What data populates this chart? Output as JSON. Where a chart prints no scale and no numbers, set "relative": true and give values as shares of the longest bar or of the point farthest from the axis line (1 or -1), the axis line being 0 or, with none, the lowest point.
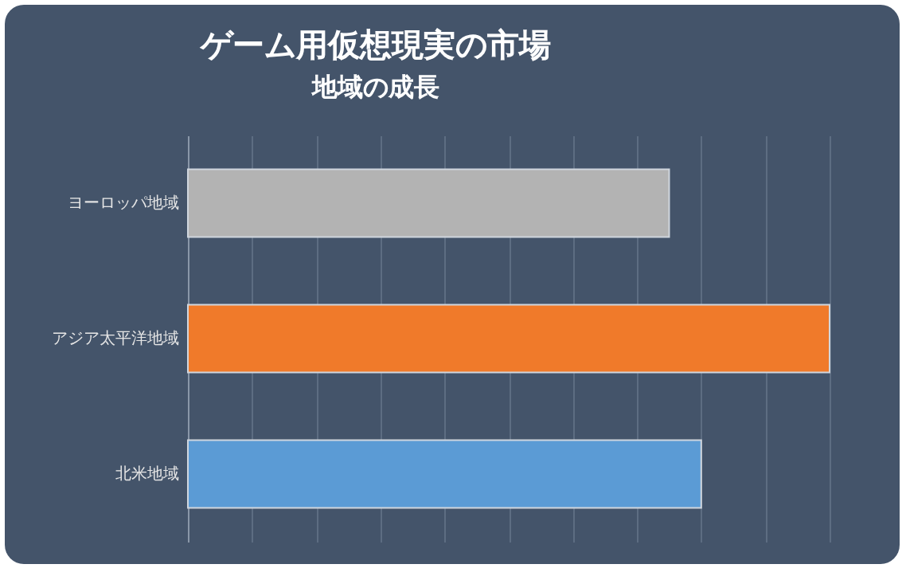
{
  "chart_data": {
    "type": "bar",
    "orientation": "horizontal",
    "relative": true,
    "title": "ゲーム用仮想現実の市場",
    "subtitle": "地域の成長",
    "categories": [
      "ヨーロッパ地域",
      "アジア太平洋地域",
      "北米地域"
    ],
    "values": [
      0.75,
      1,
      0.8
    ],
    "colors": [
      "#b3b3b3",
      "#f07a2a",
      "#5b9bd5"
    ],
    "grid": "x"
  }
}
